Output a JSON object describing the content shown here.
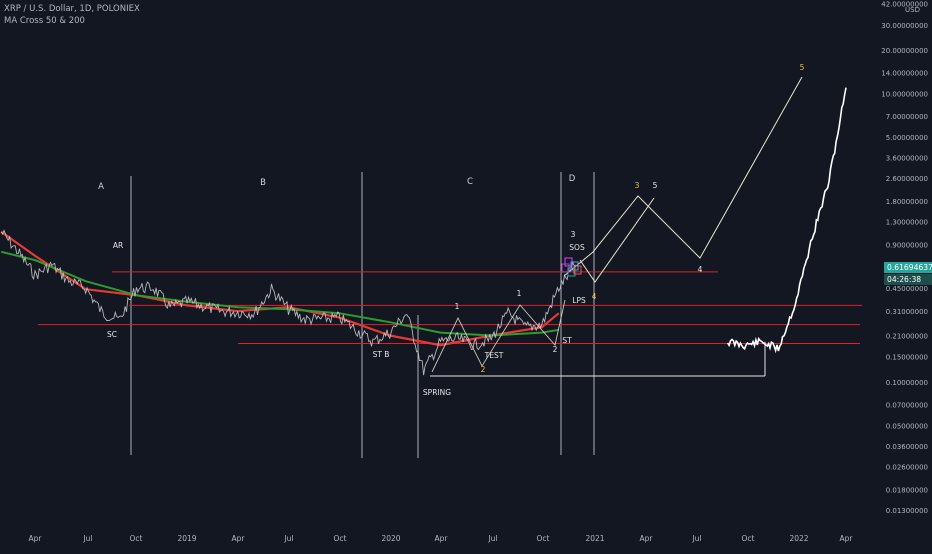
{
  "header": {
    "symbol_line": "XRP / U.S. Dollar, 1D, POLONIEX",
    "indicator_line": "MA Cross 50 & 200"
  },
  "price_scale": {
    "currency": "USD",
    "ticks": [
      "42.00000000",
      "30.00000000",
      "20.00000000",
      "14.00000000",
      "10.00000000",
      "7.00000000",
      "5.00000000",
      "3.60000000",
      "2.60000000",
      "1.80000000",
      "1.30000000",
      "0.90000000",
      "0.45000000",
      "0.31000000",
      "0.21000000",
      "0.15000000",
      "0.10000000",
      "0.07000000",
      "0.05000000",
      "0.03600000",
      "0.02600000",
      "0.01800000",
      "0.01300000"
    ],
    "last_price": "0.61694637",
    "countdown": "04:26:38"
  },
  "time_axis": {
    "ticks": [
      "Apr",
      "Jul",
      "Oct",
      "2019",
      "Apr",
      "Jul",
      "Oct",
      "2020",
      "Apr",
      "Jul",
      "Oct",
      "2021",
      "Apr",
      "Jul",
      "Oct",
      "2022",
      "Apr"
    ]
  },
  "annotations": {
    "phases": [
      "A",
      "B",
      "C",
      "D"
    ],
    "labels": [
      "AR",
      "SC",
      "ST B",
      "SPRING",
      "TEST",
      "SOS",
      "LPS",
      "ST"
    ],
    "wave_counts": [
      "1",
      "2",
      "1",
      "2",
      "3",
      "4",
      "3",
      "5",
      "4",
      "5"
    ]
  },
  "colors": {
    "background": "#131722",
    "text": "#b2b5be",
    "price_line": "#c8c8c8",
    "ma_fast": "#e53935",
    "ma_slow": "#2e9b2e",
    "level_line": "#e0212b",
    "projection": "#e8e4cc",
    "last_price_tag": "#26a69a",
    "countdown_tag": "#1f4d4b"
  },
  "chart_data": {
    "type": "line",
    "title": "XRP / U.S. Dollar, 1D, POLONIEX",
    "scale": "log",
    "series": [
      {
        "name": "MA Cross 50 & 200",
        "x": [
          "2018-02",
          "2018-04",
          "2018-07",
          "2018-10",
          "2019-01",
          "2019-04",
          "2019-07",
          "2019-10",
          "2020-01",
          "2020-04",
          "2020-07",
          "2020-10",
          "2020-11"
        ],
        "values": [
          1.1,
          0.75,
          0.44,
          0.4,
          0.34,
          0.31,
          0.33,
          0.28,
          0.21,
          0.18,
          0.21,
          0.24,
          0.3
        ]
      }
    ],
    "price": {
      "x": [
        "2018-02",
        "2018-03",
        "2018-04",
        "2018-05",
        "2018-06",
        "2018-07",
        "2018-08",
        "2018-09",
        "2018-10",
        "2018-11",
        "2018-12",
        "2019-01",
        "2019-03",
        "2019-05",
        "2019-06",
        "2019-07",
        "2019-08",
        "2019-10",
        "2019-12",
        "2020-01",
        "2020-02",
        "2020-03",
        "2020-04",
        "2020-05",
        "2020-06",
        "2020-07",
        "2020-08",
        "2020-09",
        "2020-10",
        "2020-11",
        "2020-12"
      ],
      "values": [
        1.1,
        0.8,
        0.55,
        0.65,
        0.5,
        0.45,
        0.3,
        0.27,
        0.45,
        0.45,
        0.33,
        0.36,
        0.31,
        0.3,
        0.44,
        0.32,
        0.27,
        0.28,
        0.19,
        0.22,
        0.3,
        0.12,
        0.19,
        0.2,
        0.18,
        0.2,
        0.3,
        0.24,
        0.25,
        0.45,
        0.65
      ]
    },
    "price_later": {
      "x": [
        "2021-09",
        "2021-10",
        "2021-11",
        "2021-12",
        "2022-01",
        "2022-02",
        "2022-03",
        "2022-04"
      ],
      "values": [
        0.19,
        0.18,
        0.19,
        0.17,
        0.35,
        1.0,
        2.5,
        11.0
      ]
    },
    "horizontal_levels": [
      0.58,
      0.34,
      0.25,
      0.185,
      0.11
    ],
    "ylim": [
      0.012,
      42
    ]
  }
}
